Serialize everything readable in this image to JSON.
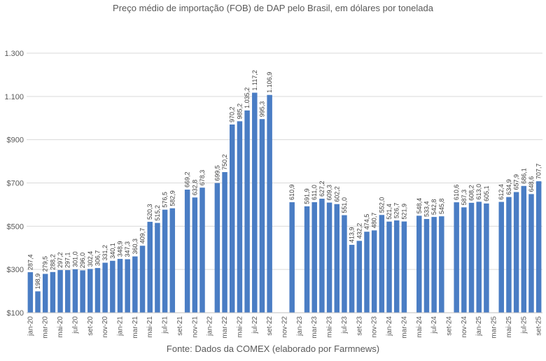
{
  "chart_data": {
    "type": "bar",
    "title": "Preço médio de importação (FOB) de DAP pelo Brasil, em dólares por tonelada",
    "source": "Fonte: Dados da COMEX (elaborado por Farmnews)",
    "xlabel": "",
    "ylabel": "",
    "ylim": [
      100,
      1300
    ],
    "y_ticks": [
      {
        "value": 100,
        "label": "$100"
      },
      {
        "value": 300,
        "label": "$300"
      },
      {
        "value": 500,
        "label": "$500"
      },
      {
        "value": 700,
        "label": "$700"
      },
      {
        "value": 900,
        "label": "$900"
      },
      {
        "value": 1100,
        "label": "1.100"
      },
      {
        "value": 1300,
        "label": "1.300"
      }
    ],
    "gridlines": true,
    "bar_color": "#4a7dc4",
    "x_tick_every": 2,
    "categories": [
      "jan-20",
      "fev-20",
      "mar-20",
      "abr-20",
      "mai-20",
      "jun-20",
      "jul-20",
      "ago-20",
      "set-20",
      "out-20",
      "nov-20",
      "dez-20",
      "jan-21",
      "fev-21",
      "mar-21",
      "abr-21",
      "mai-21",
      "jun-21",
      "jul-21",
      "ago-21",
      "set-21",
      "out-21",
      "nov-21",
      "dez-21",
      "jan-22",
      "fev-22",
      "mar-22",
      "abr-22",
      "mai-22",
      "jun-22",
      "jul-22",
      "ago-22",
      "set-22",
      "out-22",
      "nov-22",
      "dez-22",
      "jan-23",
      "fev-23",
      "mar-23",
      "abr-23",
      "mai-23",
      "jun-23",
      "jul-23",
      "ago-23",
      "set-23",
      "out-23",
      "nov-23",
      "dez-23",
      "jan-24",
      "fev-24",
      "mar-24",
      "abr-24",
      "mai-24",
      "jun-24",
      "jul-24",
      "ago-24",
      "set-24",
      "out-24",
      "nov-24",
      "dez-24",
      "jan-25",
      "fev-25",
      "mar-25",
      "abr-25",
      "mai-25",
      "jun-25",
      "jul-25",
      "ago-25",
      "set-25"
    ],
    "values": [
      287.4,
      198.9,
      279.5,
      288.2,
      297.2,
      297.1,
      301.0,
      296.0,
      302.4,
      306.7,
      331.2,
      340.1,
      348.9,
      347.3,
      360.3,
      409.7,
      520.3,
      515.2,
      576.5,
      582.9,
      null,
      669.2,
      632.8,
      678.3,
      null,
      699.5,
      750.2,
      970.2,
      985.2,
      1035.2,
      1117.2,
      995.3,
      1106.9,
      null,
      null,
      610.9,
      null,
      591.9,
      611.0,
      627.2,
      609.3,
      602.2,
      551.0,
      413.9,
      432.2,
      474.5,
      480.7,
      552.0,
      521.4,
      526.7,
      521.9,
      null,
      548.4,
      533.4,
      542.8,
      545.8,
      null,
      610.6,
      587.3,
      608.2,
      613.0,
      605.1,
      null,
      612.4,
      634.9,
      657.9,
      686.1,
      648.6,
      707.7
    ],
    "data_labels": [
      "287,4",
      "198,9",
      "279,5",
      "288,2",
      "297,2",
      "297,1",
      "301,0",
      "296,0",
      "302,4",
      "306,7",
      "331,2",
      "340,1",
      "348,9",
      "347,3",
      "360,3",
      "409,7",
      "520,3",
      "515,2",
      "576,5",
      "582,9",
      "",
      "669,2",
      "632,8",
      "678,3",
      "",
      "699,5",
      "750,2",
      "970,2",
      "985,2",
      "1.035,2",
      "1.117,2",
      "995,3",
      "1.106,9",
      "",
      "",
      "610,9",
      "",
      "591,9",
      "611,0",
      "627,2",
      "609,3",
      "602,2",
      "551,0",
      "413,9",
      "432,2",
      "474,5",
      "480,7",
      "552,0",
      "521,4",
      "526,7",
      "521,9",
      "",
      "548,4",
      "533,4",
      "542,8",
      "545,8",
      "",
      "610,6",
      "587,3",
      "608,2",
      "613,0",
      "605,1",
      "",
      "612,4",
      "634,9",
      "657,9",
      "686,1",
      "648,6",
      "707,7"
    ]
  }
}
